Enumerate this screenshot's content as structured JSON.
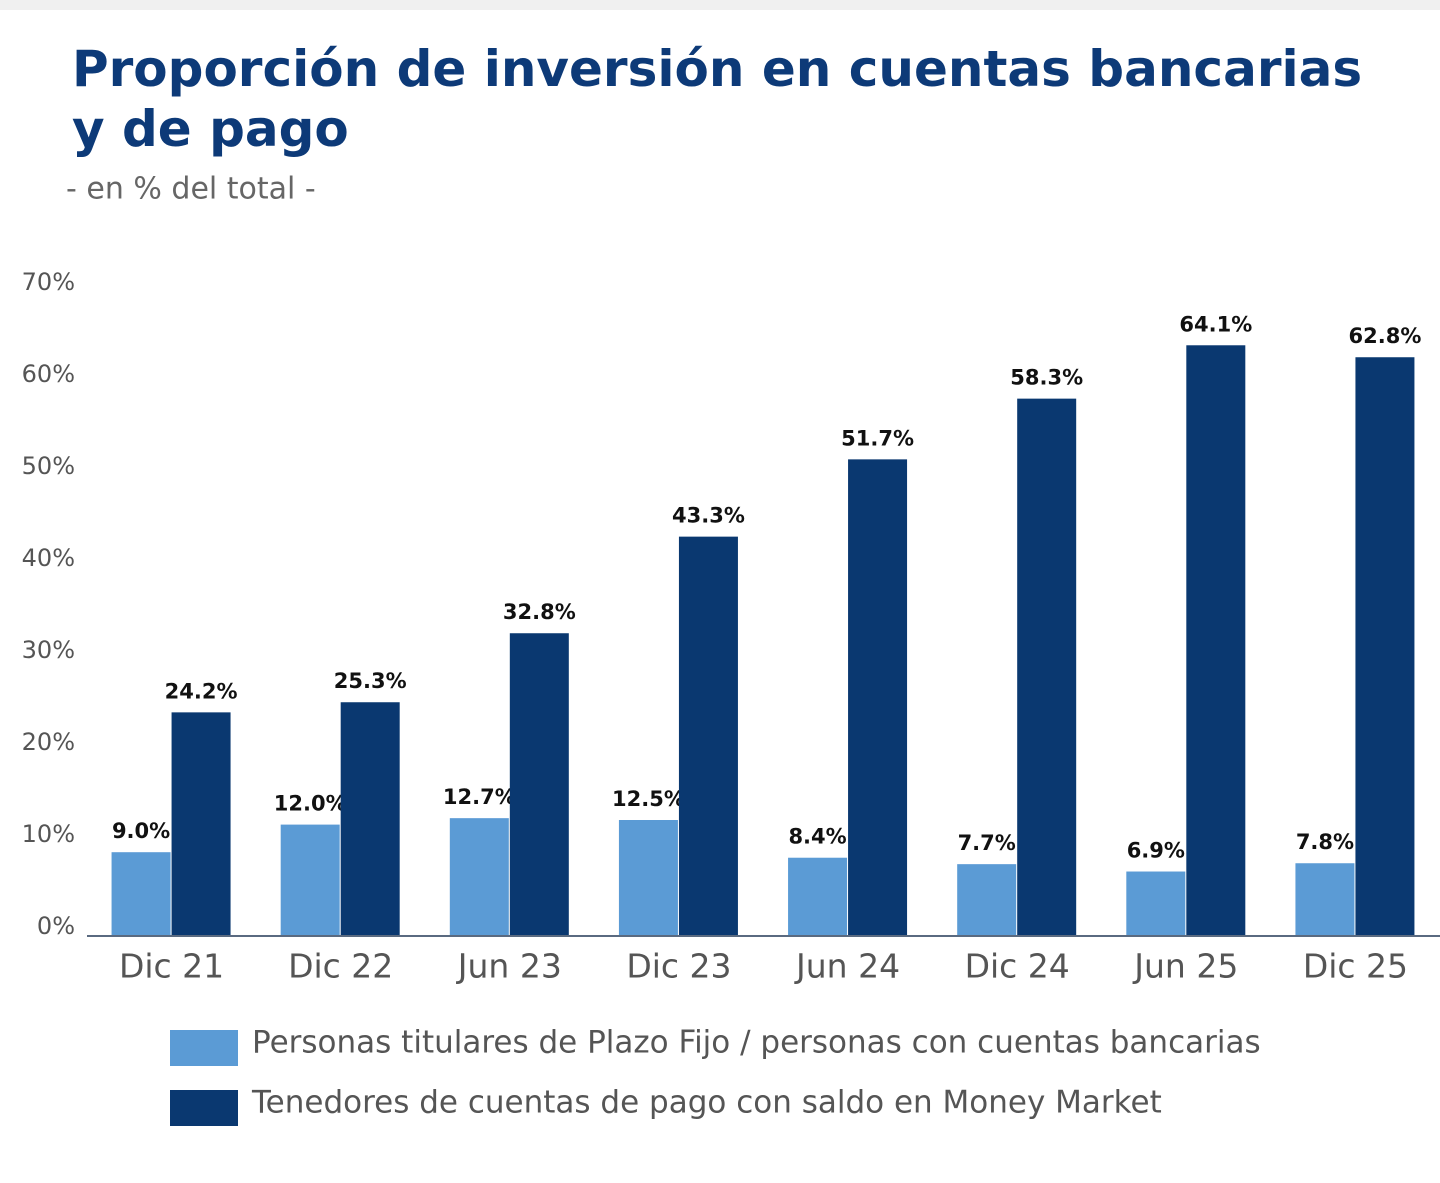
{
  "chart_data": {
    "type": "bar",
    "title": "Proporción de inversión en cuentas bancarias y de pago",
    "subtitle": "- en % del total -",
    "categories": [
      "Dic 21",
      "Dic 22",
      "Jun 23",
      "Dic 23",
      "Jun 24",
      "Dic 24",
      "Jun 25",
      "Dic 25"
    ],
    "series": [
      {
        "name": "Personas titulares de Plazo Fijo / personas con cuentas bancarias",
        "color": "#5b9bd5",
        "values": [
          9.0,
          12.0,
          12.7,
          12.5,
          8.4,
          7.7,
          6.9,
          7.8
        ],
        "value_labels": [
          "9.0%",
          "12.0%",
          "12.7%",
          "12.5%",
          "8.4%",
          "7.7%",
          "6.9%",
          "7.8%"
        ]
      },
      {
        "name": "Tenedores de cuentas de pago con saldo en Money Market",
        "color": "#0a3870",
        "values": [
          24.2,
          25.3,
          32.8,
          43.3,
          51.7,
          58.3,
          64.1,
          62.8
        ],
        "value_labels": [
          "24.2%",
          "25.3%",
          "32.8%",
          "43.3%",
          "51.7%",
          "58.3%",
          "64.1%",
          "62.8%"
        ]
      }
    ],
    "ylim": [
      0,
      70
    ],
    "yticks": [
      {
        "value": 0,
        "label": "0%"
      },
      {
        "value": 10,
        "label": "10%"
      },
      {
        "value": 20,
        "label": "20%"
      },
      {
        "value": 30,
        "label": "30%"
      },
      {
        "value": 40,
        "label": "40%"
      },
      {
        "value": 50,
        "label": "50%"
      },
      {
        "value": 60,
        "label": "60%"
      },
      {
        "value": 70,
        "label": "70%"
      }
    ],
    "grid": false
  }
}
